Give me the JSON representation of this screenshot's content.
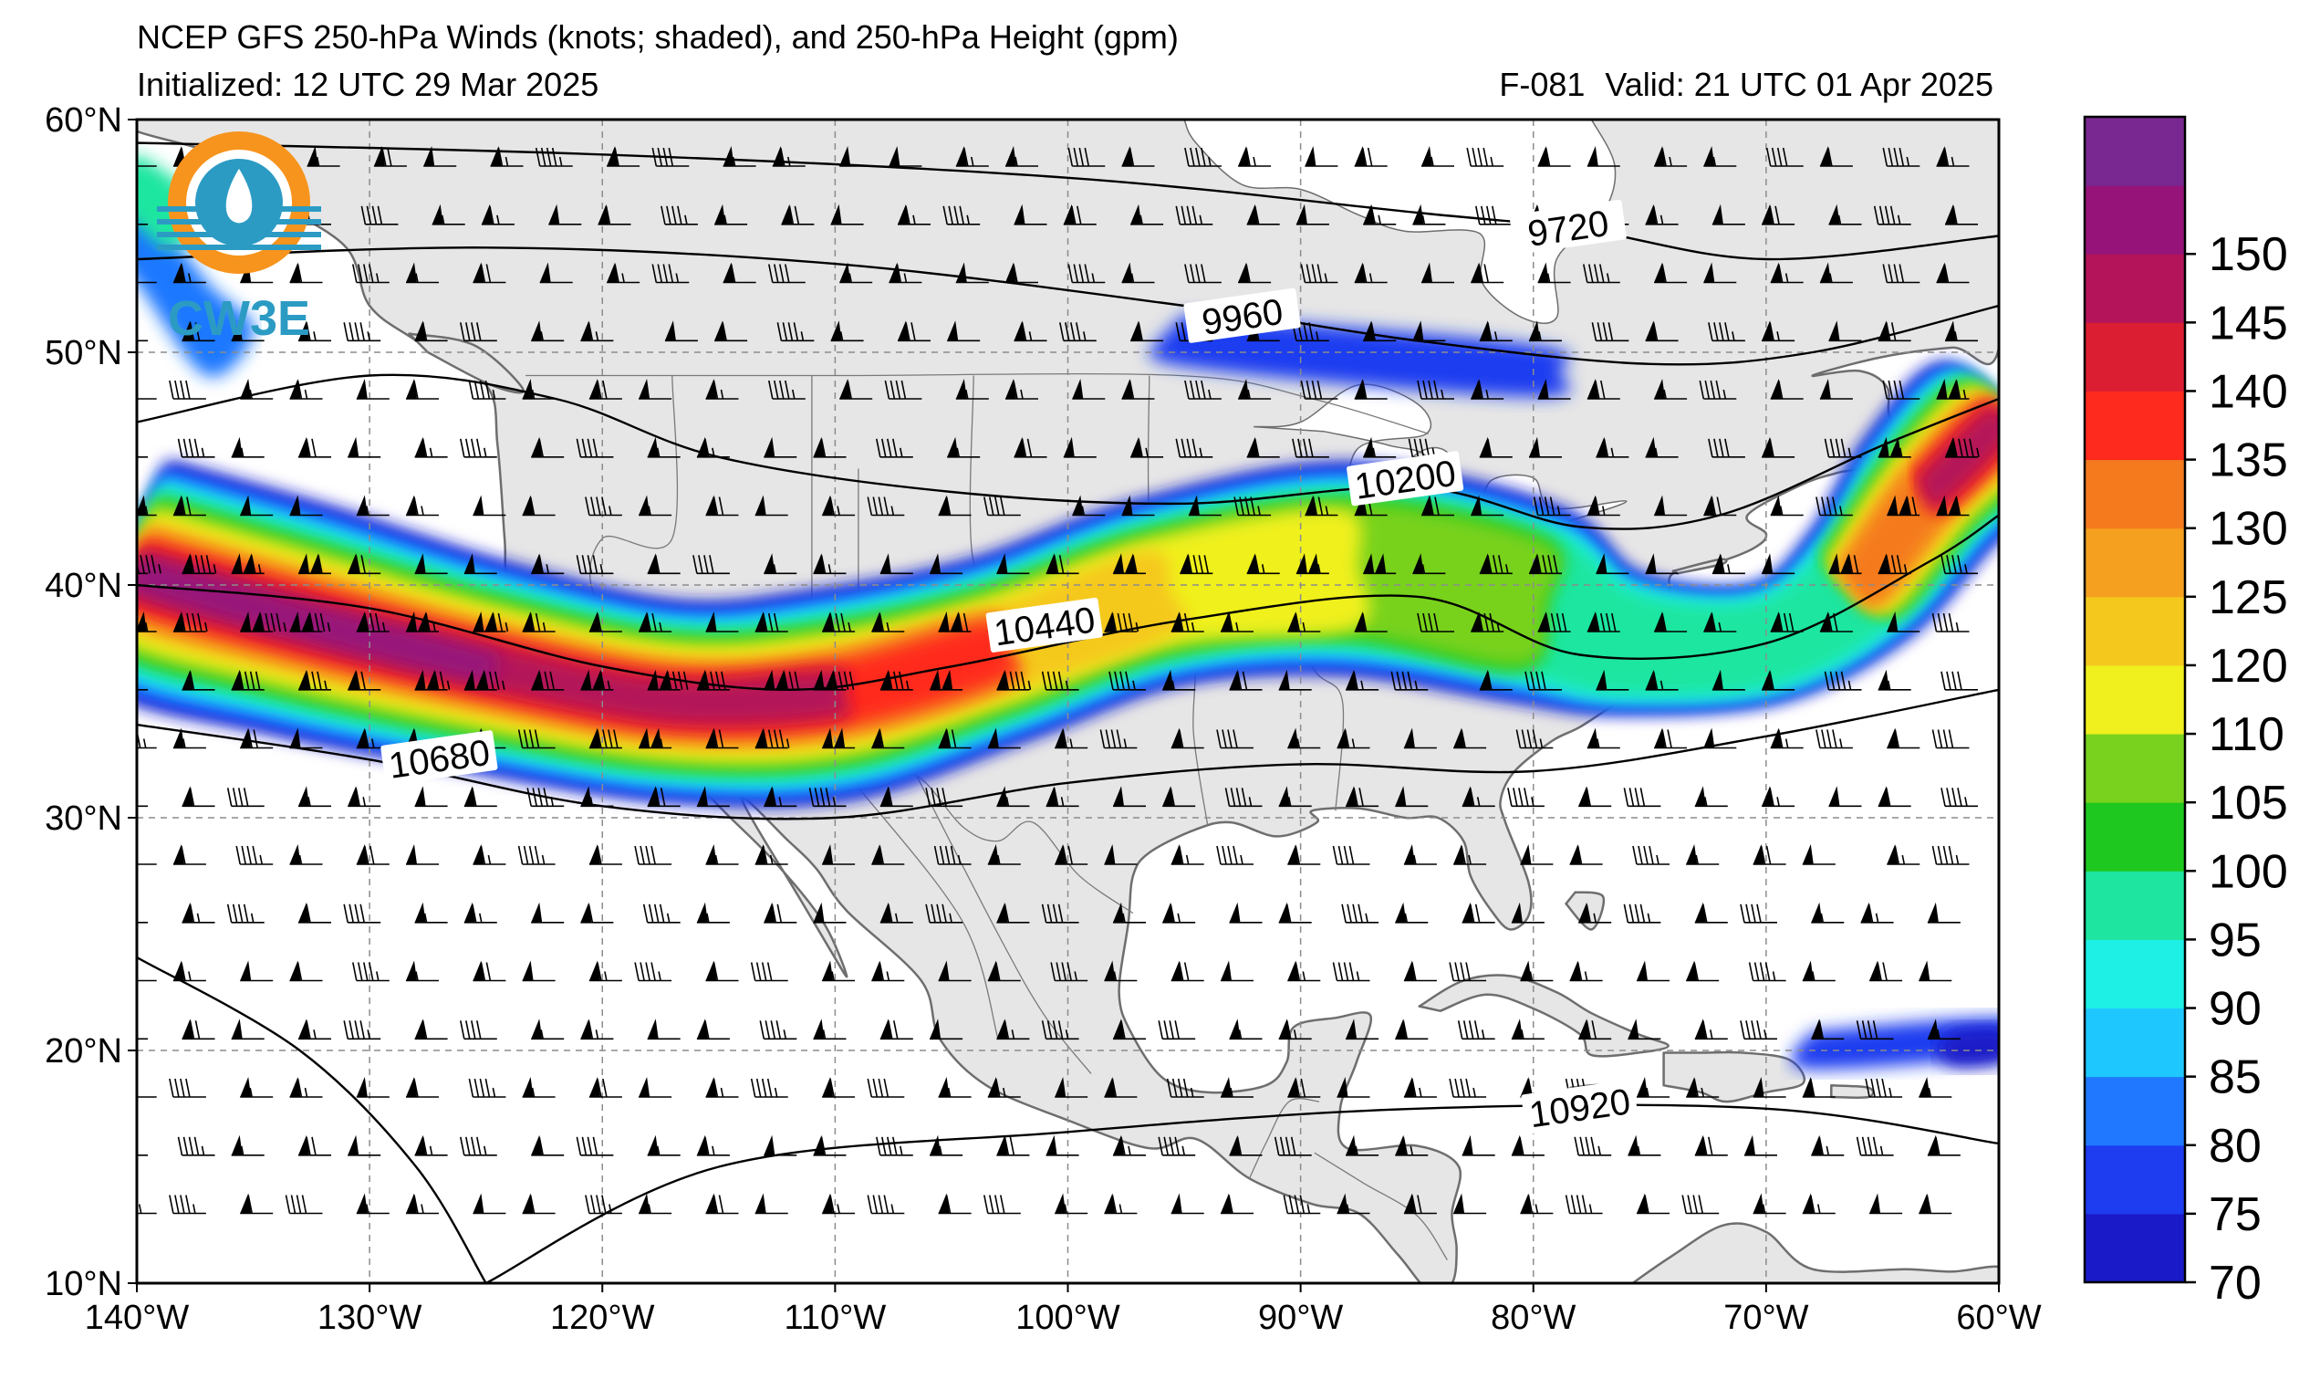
{
  "header": {
    "title": "NCEP GFS 250-hPa Winds (knots; shaded), and 250-hPa Height (gpm)",
    "initialized": "Initialized: 12 UTC 29 Mar 2025",
    "forecast_hour": "F-081",
    "valid": "Valid: 21 UTC 01 Apr 2025"
  },
  "logo": {
    "text": "CW3E",
    "icon": "cw3e-logo-icon"
  },
  "map": {
    "lon_range": [
      -140,
      -60
    ],
    "lat_range": [
      10,
      60
    ],
    "projection": "equirectangular",
    "gridlines": "dashed",
    "lon_ticks": [
      {
        "value": -140,
        "label": "140°W"
      },
      {
        "value": -130,
        "label": "130°W"
      },
      {
        "value": -120,
        "label": "120°W"
      },
      {
        "value": -110,
        "label": "110°W"
      },
      {
        "value": -100,
        "label": "100°W"
      },
      {
        "value": -90,
        "label": "90°W"
      },
      {
        "value": -80,
        "label": "80°W"
      },
      {
        "value": -70,
        "label": "70°W"
      },
      {
        "value": -60,
        "label": "60°W"
      }
    ],
    "lat_ticks": [
      {
        "value": 60,
        "label": "60°N"
      },
      {
        "value": 50,
        "label": "50°N"
      },
      {
        "value": 40,
        "label": "40°N"
      },
      {
        "value": 30,
        "label": "30°N"
      },
      {
        "value": 20,
        "label": "20°N"
      },
      {
        "value": 10,
        "label": "10°N"
      }
    ],
    "colors": {
      "land": "#e6e6e6",
      "ocean": "#ffffff",
      "coast": "#6e6e6e",
      "contour": "#000000",
      "barb": "#000000"
    }
  },
  "colorbar": {
    "levels": [
      70,
      75,
      80,
      85,
      90,
      95,
      100,
      105,
      110,
      120,
      125,
      130,
      135,
      140,
      145,
      150,
      155
    ],
    "labels": [
      "70",
      "75",
      "80",
      "85",
      "90",
      "95",
      "100",
      "105",
      "110",
      "120",
      "125",
      "130",
      "135",
      "140",
      "145",
      "150"
    ],
    "colors": [
      "#1a1ac8",
      "#1e3cf0",
      "#1f78ff",
      "#1ec8ff",
      "#1ef0e6",
      "#1ee6a0",
      "#1ec81e",
      "#78d21e",
      "#f0f01e",
      "#f5c81e",
      "#f5a01e",
      "#f57a1e",
      "#ff2a1e",
      "#dc1e32",
      "#b4145a",
      "#96147a",
      "#782890"
    ]
  },
  "contours": [
    {
      "label": "9720",
      "label_lon": -78.5,
      "label_lat": 55.3,
      "points": [
        [
          -140,
          59
        ],
        [
          -120,
          58.5
        ],
        [
          -100,
          57.5
        ],
        [
          -85,
          56
        ],
        [
          -78,
          55.3
        ],
        [
          -70,
          54
        ],
        [
          -60,
          55
        ]
      ]
    },
    {
      "label": "9960",
      "label_lon": -92.5,
      "label_lat": 51.5,
      "points": [
        [
          -140,
          54
        ],
        [
          -125,
          54.5
        ],
        [
          -110,
          53.8
        ],
        [
          -95,
          52
        ],
        [
          -85,
          50.5
        ],
        [
          -75,
          49.5
        ],
        [
          -68,
          50
        ],
        [
          -60,
          52
        ]
      ]
    },
    {
      "label": "10200",
      "label_lon": -85.5,
      "label_lat": 44.5,
      "points": [
        [
          -140,
          47
        ],
        [
          -130,
          49
        ],
        [
          -122,
          48
        ],
        [
          -115,
          45.5
        ],
        [
          -105,
          44
        ],
        [
          -95,
          43.5
        ],
        [
          -85,
          44.2
        ],
        [
          -78,
          42.5
        ],
        [
          -72,
          43
        ],
        [
          -65,
          46
        ],
        [
          -60,
          48
        ]
      ]
    },
    {
      "label": "10440",
      "label_lon": -101,
      "label_lat": 38.2,
      "points": [
        [
          -140,
          40
        ],
        [
          -130,
          39
        ],
        [
          -120,
          36.5
        ],
        [
          -112,
          35.5
        ],
        [
          -105,
          36.5
        ],
        [
          -95,
          38.5
        ],
        [
          -85,
          39.5
        ],
        [
          -78,
          37
        ],
        [
          -70,
          37.5
        ],
        [
          -63,
          41
        ],
        [
          -60,
          43
        ]
      ]
    },
    {
      "label": "10680",
      "label_lon": -127,
      "label_lat": 32.5,
      "points": [
        [
          -140,
          34
        ],
        [
          -130,
          32.5
        ],
        [
          -120,
          30.5
        ],
        [
          -110,
          30
        ],
        [
          -100,
          31.5
        ],
        [
          -90,
          32.3
        ],
        [
          -80,
          32
        ],
        [
          -70,
          33.5
        ],
        [
          -60,
          35.5
        ]
      ]
    },
    {
      "label": "10920",
      "label_lon": -78,
      "label_lat": 17.5,
      "points": [
        [
          -140,
          24
        ],
        [
          -133,
          20
        ],
        [
          -128,
          15
        ],
        [
          -125,
          10
        ]
      ]
    },
    {
      "label": "",
      "label_lon": 0,
      "label_lat": 0,
      "points": [
        [
          -125,
          10
        ],
        [
          -115,
          15
        ],
        [
          -100,
          16.5
        ],
        [
          -85,
          17.5
        ],
        [
          -70,
          17.5
        ],
        [
          -60,
          16
        ]
      ]
    }
  ],
  "jet_core": {
    "points": [
      [
        -140,
        40.5
      ],
      [
        -133,
        38.5
      ],
      [
        -125,
        36.5
      ],
      [
        -117,
        35
      ],
      [
        -110,
        35.3
      ],
      [
        -103,
        37.2
      ],
      [
        -96,
        39.7
      ],
      [
        -88,
        40.7
      ],
      [
        -80,
        39.2
      ],
      [
        -76,
        37.5
      ],
      [
        -70,
        37.5
      ],
      [
        -66,
        40
      ],
      [
        -63,
        44
      ],
      [
        -60,
        47
      ]
    ],
    "width_deg": [
      10,
      10,
      9,
      8.5,
      9,
      8,
      8,
      9,
      8.5,
      6,
      5,
      6,
      7,
      7
    ],
    "peak_knots": [
      150,
      150,
      150,
      145,
      145,
      135,
      120,
      110,
      105,
      95,
      95,
      130,
      145,
      150
    ]
  }
}
